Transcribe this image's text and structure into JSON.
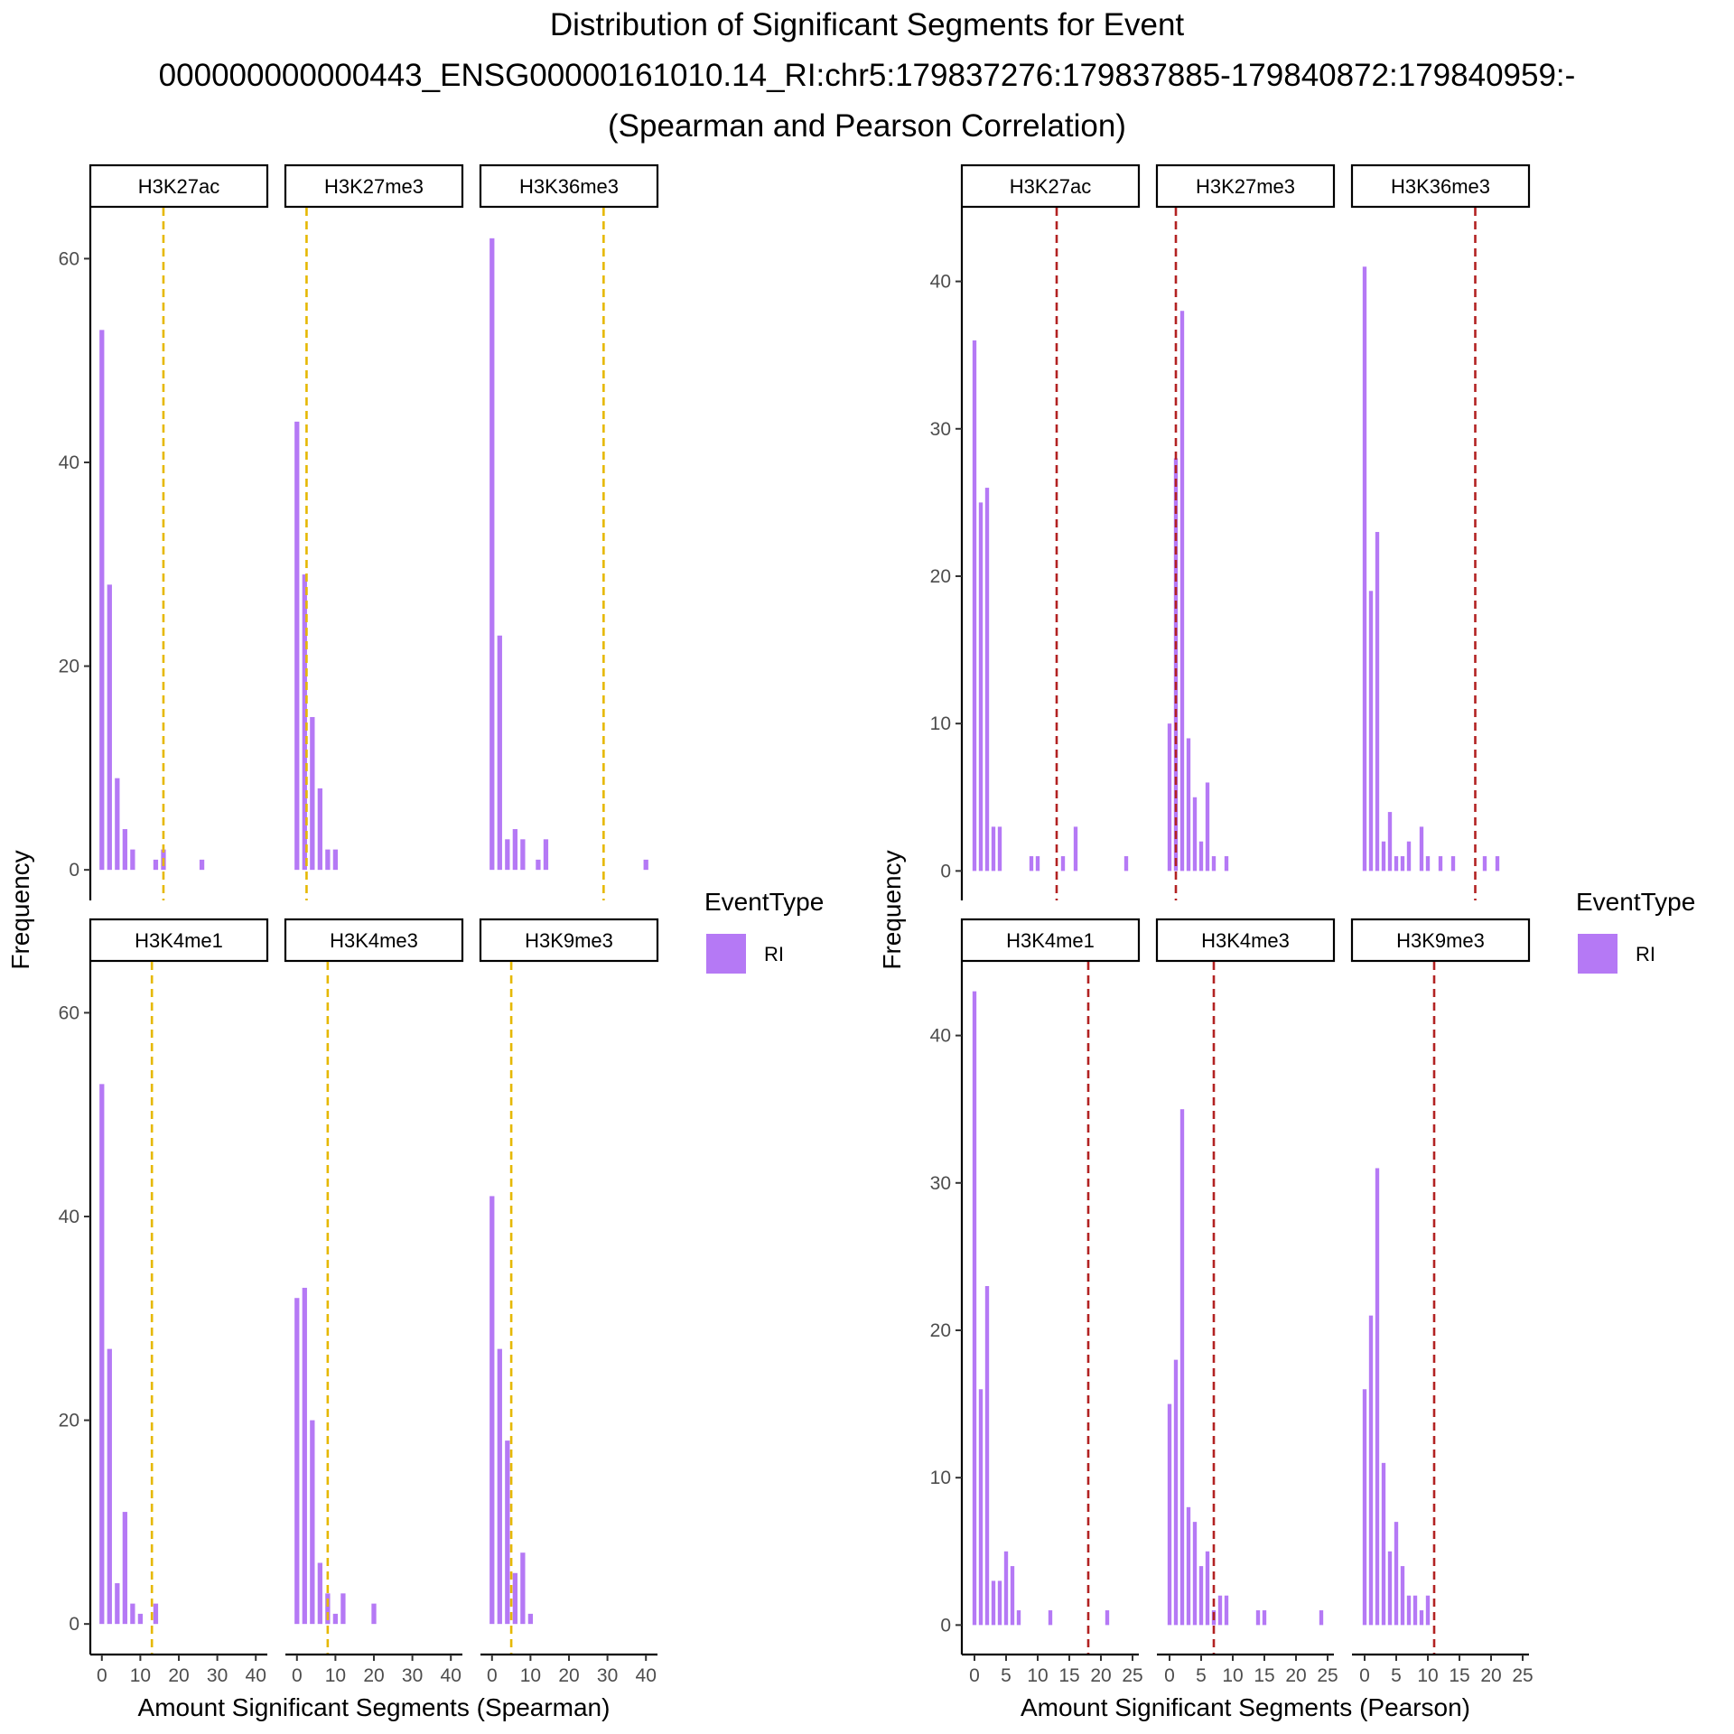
{
  "title": {
    "line1": "Distribution of Significant Segments for Event",
    "line2": "000000000000443_ENSG00000161010.14_RI:chr5:179837276:179837885-179840872:179840959:-",
    "line3": "(Spearman and Pearson Correlation)"
  },
  "colors": {
    "bar": "#b579f5",
    "spearman_line": "#e6b800",
    "pearson_line": "#b22222"
  },
  "chart_data": [
    {
      "type": "bar",
      "name": "spearman",
      "xlabel": "Amount Significant Segments (Spearman)",
      "ylabel": "Frequency",
      "xlim": [
        -3,
        43
      ],
      "ylim": [
        -3,
        65
      ],
      "xticks": [
        0,
        10,
        20,
        30,
        40
      ],
      "yticks": [
        0,
        20,
        40,
        60
      ],
      "bin_width": 2,
      "legend": {
        "title": "EventType",
        "items": [
          {
            "label": "RI"
          }
        ]
      },
      "facets": [
        {
          "label": "H3K27ac",
          "threshold": 16,
          "bins": [
            [
              0,
              53
            ],
            [
              2,
              28
            ],
            [
              4,
              9
            ],
            [
              6,
              4
            ],
            [
              8,
              2
            ],
            [
              14,
              1
            ],
            [
              16,
              2
            ],
            [
              26,
              1
            ]
          ]
        },
        {
          "label": "H3K27me3",
          "threshold": 2.5,
          "bins": [
            [
              0,
              44
            ],
            [
              2,
              29
            ],
            [
              4,
              15
            ],
            [
              6,
              8
            ],
            [
              8,
              2
            ],
            [
              10,
              2
            ]
          ]
        },
        {
          "label": "H3K36me3",
          "threshold": 29,
          "bins": [
            [
              0,
              62
            ],
            [
              2,
              23
            ],
            [
              4,
              3
            ],
            [
              6,
              4
            ],
            [
              8,
              3
            ],
            [
              12,
              1
            ],
            [
              14,
              3
            ],
            [
              40,
              1
            ]
          ]
        },
        {
          "label": "H3K4me1",
          "threshold": 13,
          "bins": [
            [
              0,
              53
            ],
            [
              2,
              27
            ],
            [
              4,
              4
            ],
            [
              6,
              11
            ],
            [
              8,
              2
            ],
            [
              10,
              1
            ],
            [
              14,
              2
            ]
          ]
        },
        {
          "label": "H3K4me3",
          "threshold": 8,
          "bins": [
            [
              0,
              32
            ],
            [
              2,
              33
            ],
            [
              4,
              20
            ],
            [
              6,
              6
            ],
            [
              8,
              3
            ],
            [
              10,
              1
            ],
            [
              12,
              3
            ],
            [
              20,
              2
            ]
          ]
        },
        {
          "label": "H3K9me3",
          "threshold": 5,
          "bins": [
            [
              0,
              42
            ],
            [
              2,
              27
            ],
            [
              4,
              18
            ],
            [
              6,
              5
            ],
            [
              8,
              7
            ],
            [
              10,
              1
            ]
          ]
        }
      ]
    },
    {
      "type": "bar",
      "name": "pearson",
      "xlabel": "Amount Significant Segments (Pearson)",
      "ylabel": "Frequency",
      "xlim": [
        -2,
        26
      ],
      "ylim": [
        -2,
        45
      ],
      "xticks": [
        0,
        5,
        10,
        15,
        20,
        25
      ],
      "yticks": [
        0,
        10,
        20,
        30,
        40
      ],
      "bin_width": 1,
      "legend": {
        "title": "EventType",
        "items": [
          {
            "label": "RI"
          }
        ]
      },
      "facets": [
        {
          "label": "H3K27ac",
          "threshold": 13,
          "bins": [
            [
              0,
              36
            ],
            [
              1,
              25
            ],
            [
              2,
              26
            ],
            [
              3,
              3
            ],
            [
              4,
              3
            ],
            [
              9,
              1
            ],
            [
              10,
              1
            ],
            [
              14,
              1
            ],
            [
              16,
              3
            ],
            [
              24,
              1
            ]
          ]
        },
        {
          "label": "H3K27me3",
          "threshold": 1,
          "bins": [
            [
              0,
              10
            ],
            [
              1,
              28
            ],
            [
              2,
              38
            ],
            [
              3,
              9
            ],
            [
              4,
              5
            ],
            [
              5,
              2
            ],
            [
              6,
              6
            ],
            [
              7,
              1
            ],
            [
              9,
              1
            ]
          ]
        },
        {
          "label": "H3K36me3",
          "threshold": 17.5,
          "bins": [
            [
              0,
              41
            ],
            [
              1,
              19
            ],
            [
              2,
              23
            ],
            [
              3,
              2
            ],
            [
              4,
              4
            ],
            [
              5,
              1
            ],
            [
              6,
              1
            ],
            [
              7,
              2
            ],
            [
              9,
              3
            ],
            [
              10,
              1
            ],
            [
              12,
              1
            ],
            [
              14,
              1
            ],
            [
              19,
              1
            ],
            [
              21,
              1
            ]
          ]
        },
        {
          "label": "H3K4me1",
          "threshold": 18,
          "bins": [
            [
              0,
              43
            ],
            [
              1,
              16
            ],
            [
              2,
              23
            ],
            [
              3,
              3
            ],
            [
              4,
              3
            ],
            [
              5,
              5
            ],
            [
              6,
              4
            ],
            [
              7,
              1
            ],
            [
              12,
              1
            ],
            [
              21,
              1
            ]
          ]
        },
        {
          "label": "H3K4me3",
          "threshold": 7,
          "bins": [
            [
              0,
              15
            ],
            [
              1,
              18
            ],
            [
              2,
              35
            ],
            [
              3,
              8
            ],
            [
              4,
              7
            ],
            [
              5,
              4
            ],
            [
              6,
              5
            ],
            [
              7,
              1
            ],
            [
              8,
              2
            ],
            [
              9,
              2
            ],
            [
              14,
              1
            ],
            [
              15,
              1
            ],
            [
              24,
              1
            ]
          ]
        },
        {
          "label": "H3K9me3",
          "threshold": 11,
          "bins": [
            [
              0,
              16
            ],
            [
              1,
              21
            ],
            [
              2,
              31
            ],
            [
              3,
              11
            ],
            [
              4,
              5
            ],
            [
              5,
              7
            ],
            [
              6,
              4
            ],
            [
              7,
              2
            ],
            [
              8,
              2
            ],
            [
              9,
              1
            ],
            [
              10,
              2
            ]
          ]
        }
      ]
    }
  ]
}
